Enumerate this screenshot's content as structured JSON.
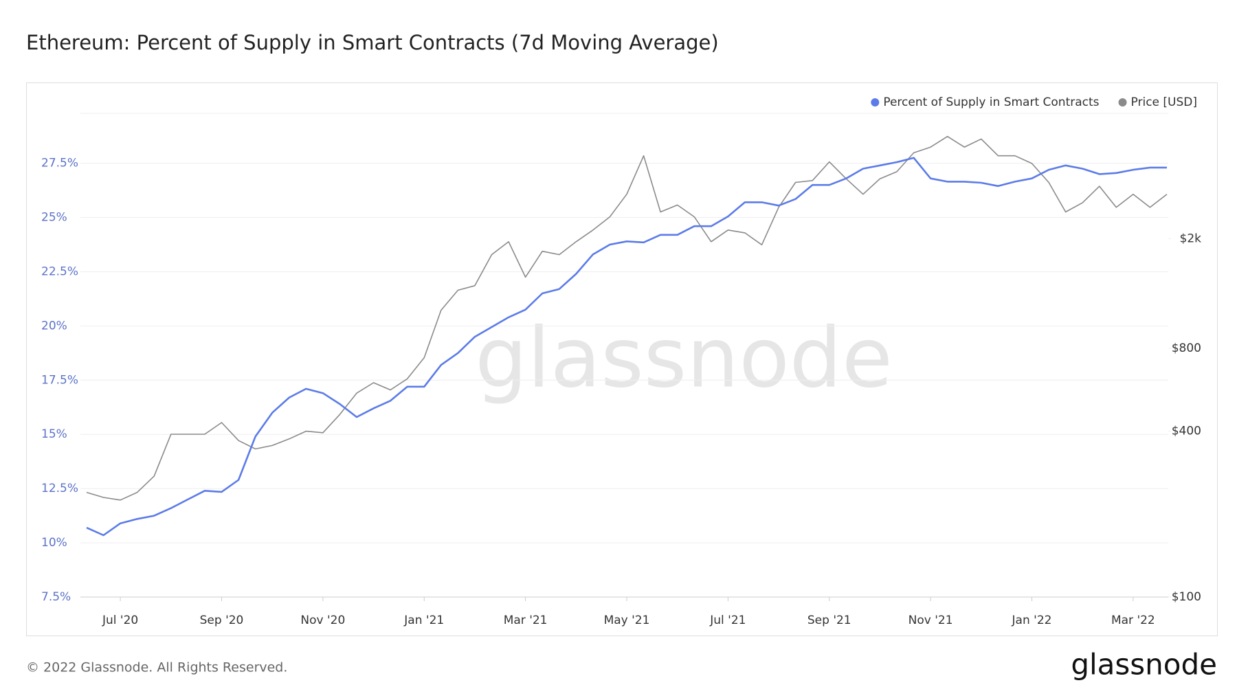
{
  "chart_data": {
    "type": "line",
    "title": "Ethereum: Percent of Supply in Smart Contracts (7d Moving Average)",
    "categories": [
      null,
      null,
      "Jul '20",
      null,
      null,
      null,
      null,
      null,
      "Sep '20",
      null,
      null,
      null,
      null,
      null,
      "Nov '20",
      null,
      null,
      null,
      null,
      null,
      "Jan '21",
      null,
      null,
      null,
      null,
      null,
      "Mar '21",
      null,
      null,
      null,
      null,
      null,
      "May '21",
      null,
      null,
      null,
      null,
      null,
      "Jul '21",
      null,
      null,
      null,
      null,
      null,
      "Sep '21",
      null,
      null,
      null,
      null,
      null,
      "Nov '21",
      null,
      null,
      null,
      null,
      null,
      "Jan '22",
      null,
      null,
      null,
      null,
      null,
      "Mar '22",
      null,
      null
    ],
    "series": [
      {
        "name": "Percent of Supply in Smart Contracts",
        "color": "#5b7be8",
        "values": [
          10.7,
          10.35,
          10.9,
          11.1,
          11.25,
          11.6,
          12.0,
          12.4,
          12.35,
          12.9,
          14.9,
          16.0,
          16.7,
          17.1,
          16.9,
          16.4,
          15.8,
          16.2,
          16.55,
          17.2,
          17.2,
          18.2,
          18.75,
          19.5,
          19.95,
          20.4,
          20.75,
          21.5,
          21.7,
          22.4,
          23.3,
          23.75,
          23.9,
          23.85,
          24.2,
          24.2,
          24.6,
          24.6,
          25.05,
          25.7,
          25.7,
          25.55,
          25.85,
          26.5,
          26.5,
          26.8,
          27.25,
          27.4,
          27.55,
          27.75,
          26.8,
          26.65,
          26.65,
          26.6,
          26.45,
          26.65,
          26.8,
          27.2,
          27.4,
          27.25,
          27.0,
          27.05,
          27.2,
          27.3,
          27.3
        ]
      },
      {
        "name": "Price [USD]",
        "color": "#8a8a8a",
        "axis": "y2",
        "values": [
          240,
          230,
          225,
          240,
          275,
          390,
          390,
          390,
          430,
          370,
          345,
          355,
          375,
          400,
          395,
          460,
          550,
          600,
          565,
          620,
          740,
          1100,
          1300,
          1350,
          1750,
          1950,
          1450,
          1800,
          1750,
          1950,
          2150,
          2400,
          2900,
          4000,
          2500,
          2650,
          2400,
          1950,
          2150,
          2100,
          1900,
          2600,
          3200,
          3250,
          3800,
          3300,
          2900,
          3300,
          3500,
          4100,
          4300,
          4700,
          4300,
          4600,
          4000,
          4000,
          3750,
          3200,
          2500,
          2700,
          3100,
          2600,
          2900,
          2600,
          2900
        ]
      }
    ],
    "ylim": [
      7.5,
      29.8
    ],
    "yticks": [
      {
        "value": 7.5,
        "label": "7.5%"
      },
      {
        "value": 10,
        "label": "10%"
      },
      {
        "value": 12.5,
        "label": "12.5%"
      },
      {
        "value": 15,
        "label": "15%"
      },
      {
        "value": 17.5,
        "label": "17.5%"
      },
      {
        "value": 20,
        "label": "20%"
      },
      {
        "value": 22.5,
        "label": "22.5%"
      },
      {
        "value": 25,
        "label": "25%"
      },
      {
        "value": 27.5,
        "label": "27.5%"
      }
    ],
    "y2lim": [
      100,
      5700
    ],
    "y2log": true,
    "y2ticks": [
      {
        "value": 100,
        "label": "$100"
      },
      {
        "value": 400,
        "label": "$400"
      },
      {
        "value": 800,
        "label": "$800"
      },
      {
        "value": 2000,
        "label": "$2k"
      }
    ],
    "grid": true,
    "legend": "top-right",
    "watermark": "glassnode"
  },
  "footer": {
    "copyright": "© 2022 Glassnode. All Rights Reserved.",
    "logo": "glassnode"
  }
}
